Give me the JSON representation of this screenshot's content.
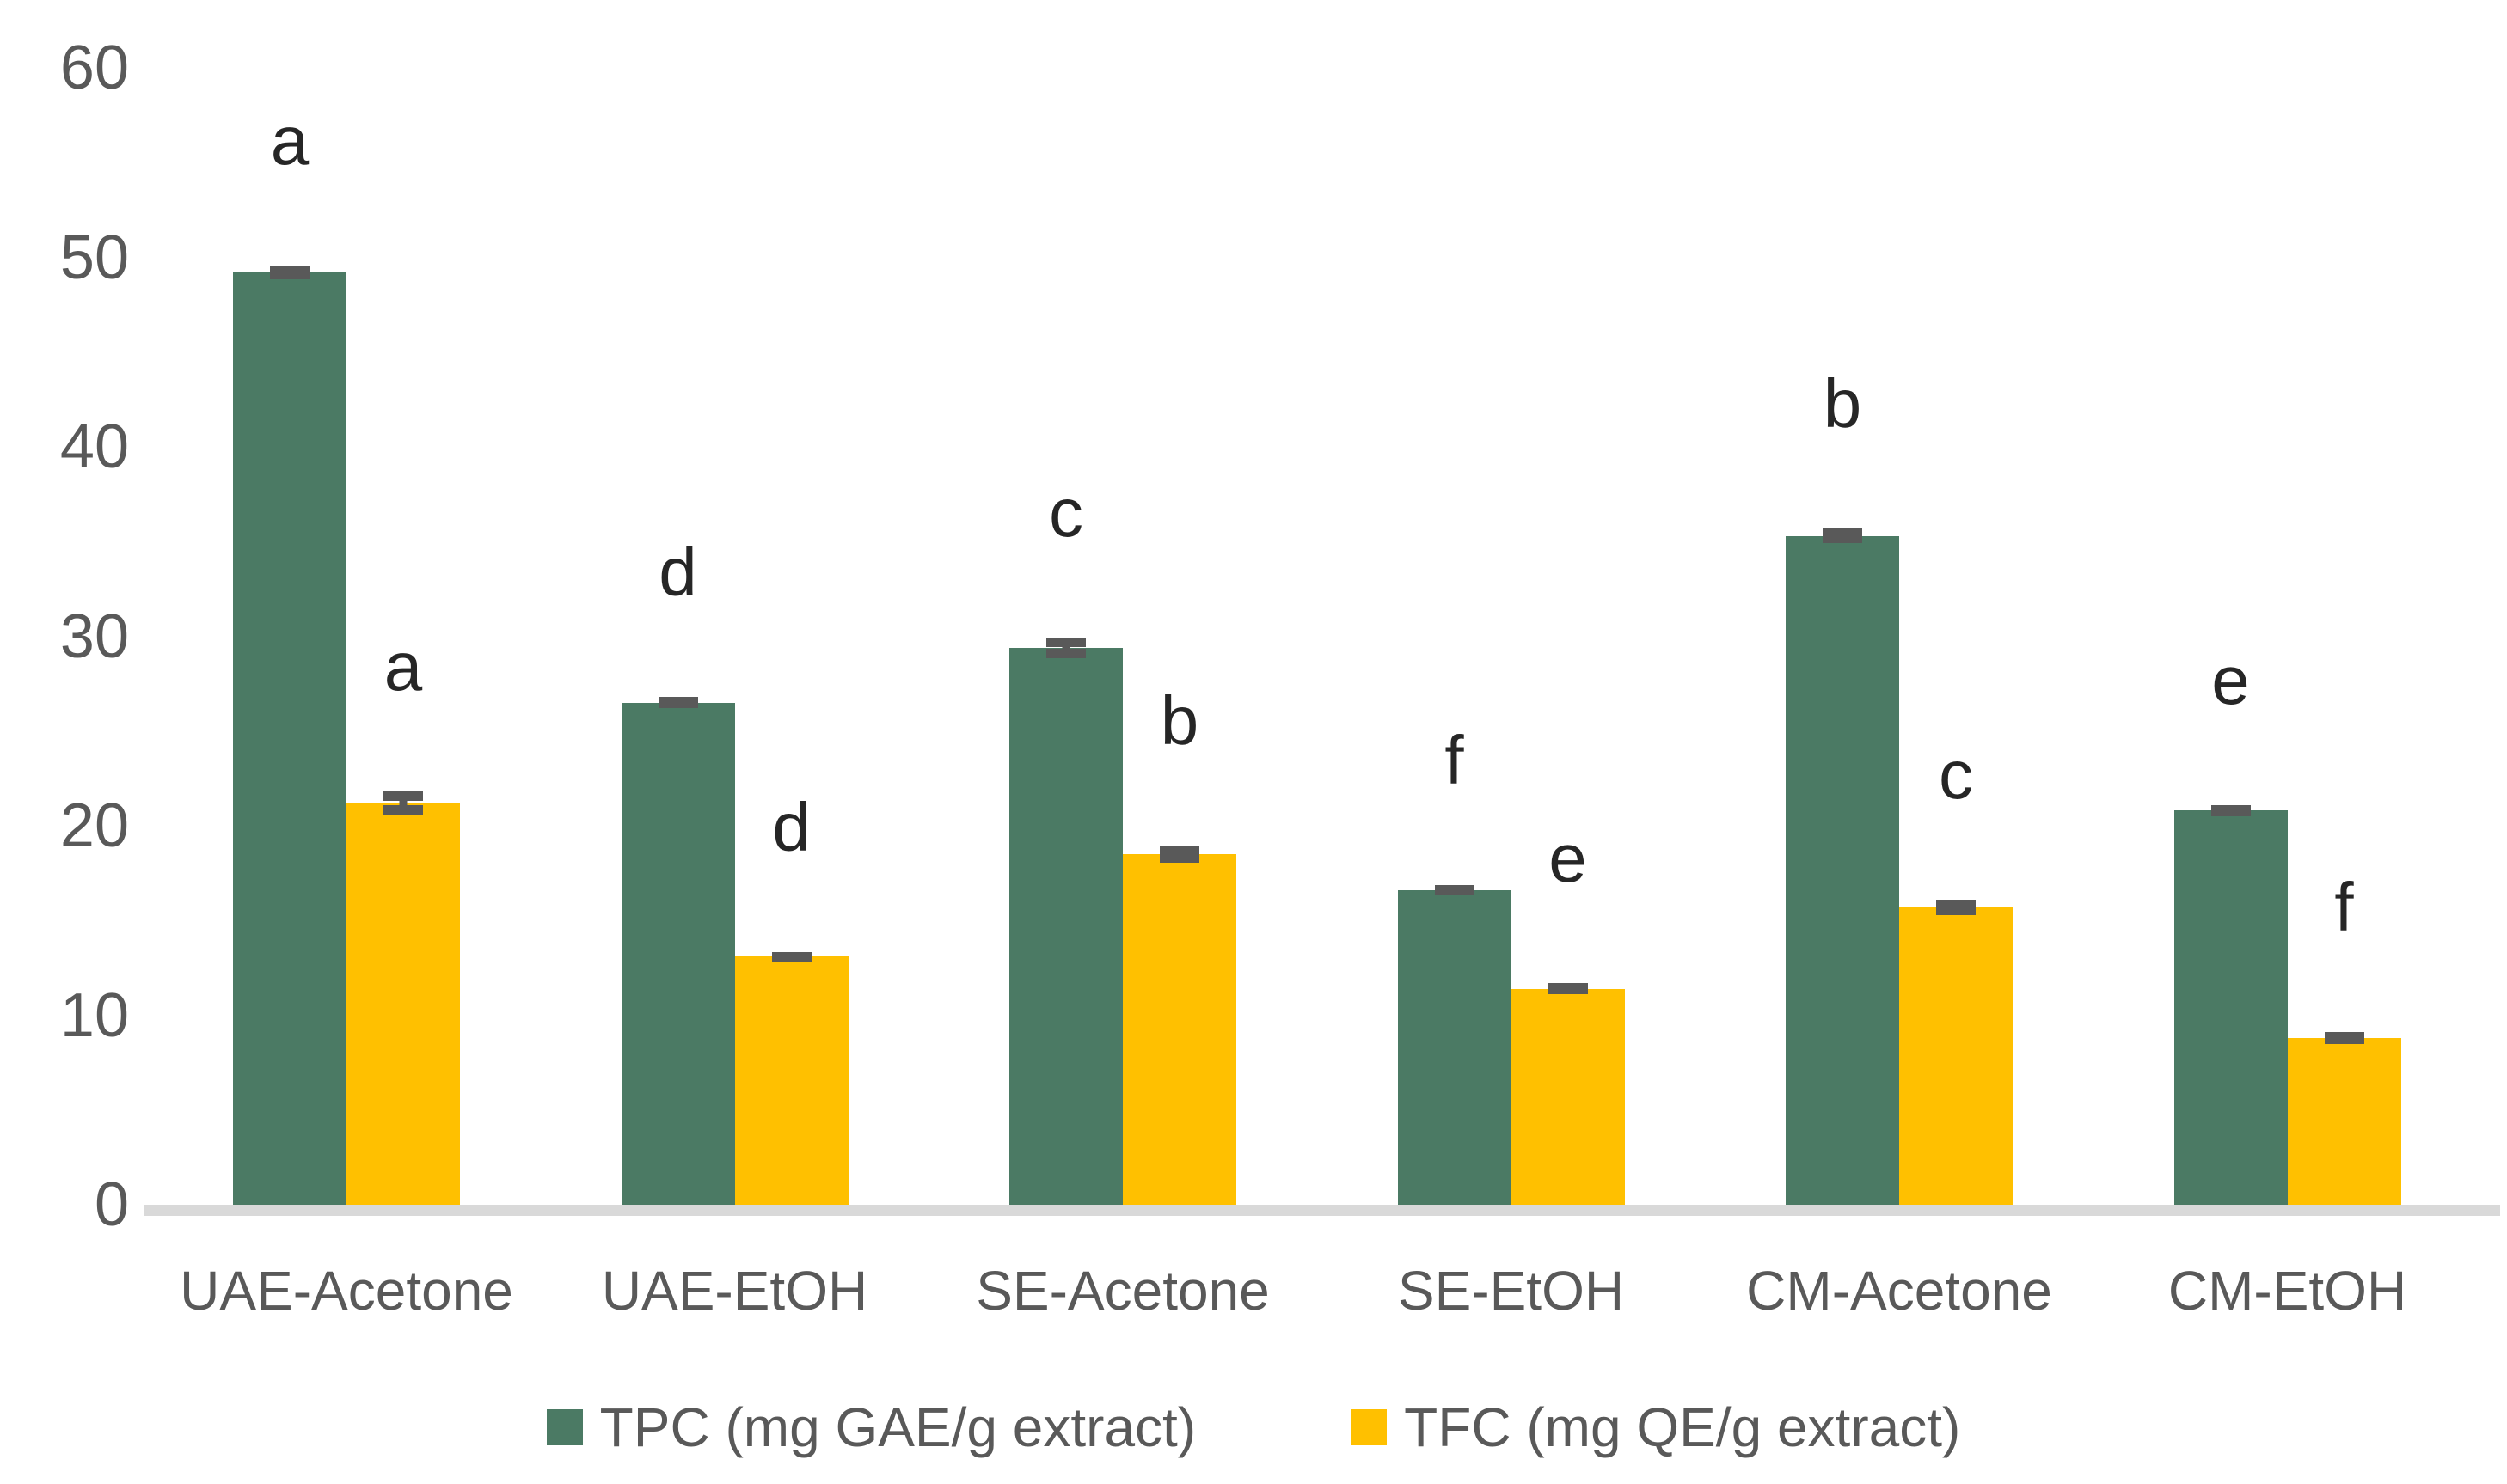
{
  "chart_data": {
    "type": "bar",
    "title": "",
    "xlabel": "",
    "ylabel": "",
    "categories": [
      "UAE-Acetone",
      "UAE-EtOH",
      "SE-Acetone",
      "SE-EtOH",
      "CM-Acetone",
      "CM-EtOH"
    ],
    "series": [
      {
        "name": "TPC (mg GAE/g extract)",
        "color": "#4B7A64",
        "values": [
          49.2,
          26.5,
          29.4,
          16.6,
          35.3,
          20.8
        ],
        "errors": [
          0.35,
          0.3,
          0.55,
          0.25,
          0.4,
          0.3
        ],
        "letters": [
          "a",
          "d",
          "c",
          "f",
          "b",
          "e"
        ]
      },
      {
        "name": "TFC (mg QE/g extract)",
        "color": "#FFC000",
        "values": [
          21.2,
          13.1,
          18.5,
          11.4,
          15.7,
          8.8
        ],
        "errors": [
          0.6,
          0.25,
          0.45,
          0.3,
          0.4,
          0.3
        ],
        "letters": [
          "a",
          "d",
          "b",
          "e",
          "c",
          "f"
        ]
      }
    ],
    "ylim": [
      0,
      60
    ],
    "yticks": [
      0,
      10,
      20,
      30,
      40,
      50,
      60
    ],
    "grid": false,
    "legend_position": "bottom",
    "axis_color": "#d9d9d9",
    "tick_label_color": "#595959",
    "letter_color": "#262626",
    "error_bar_color": "#595959"
  }
}
